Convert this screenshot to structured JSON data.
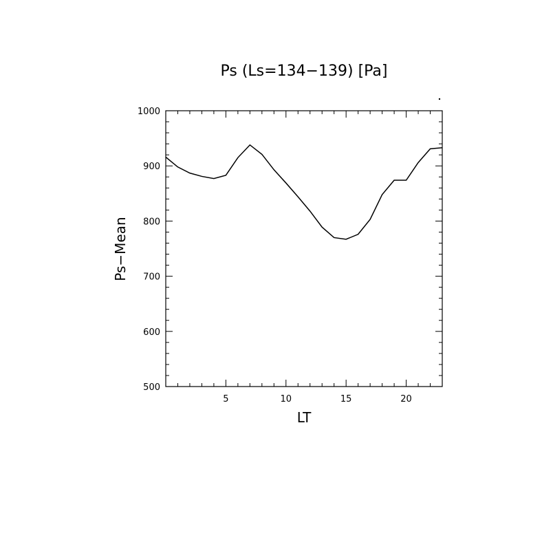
{
  "chart_data": {
    "type": "line",
    "title": "Ps (Ls=134−139) [Pa]",
    "xlabel": "LT",
    "ylabel": "Ps−Mean",
    "xlim": [
      0,
      23
    ],
    "ylim": [
      500,
      1000
    ],
    "xticks": [
      5,
      10,
      15,
      20
    ],
    "yticks": [
      500,
      600,
      700,
      800,
      900,
      1000
    ],
    "grid": false,
    "series": [
      {
        "x": [
          0,
          1,
          2,
          3,
          4,
          5,
          6,
          7,
          8,
          9,
          10,
          11,
          12,
          13,
          14,
          15,
          16,
          17,
          18,
          19,
          20,
          21,
          22,
          23
        ],
        "y": [
          916,
          898,
          887,
          881,
          877,
          883,
          915,
          938,
          921,
          893,
          869,
          844,
          818,
          789,
          770,
          767,
          776,
          803,
          848,
          874,
          874,
          906,
          931,
          933
        ]
      }
    ]
  }
}
